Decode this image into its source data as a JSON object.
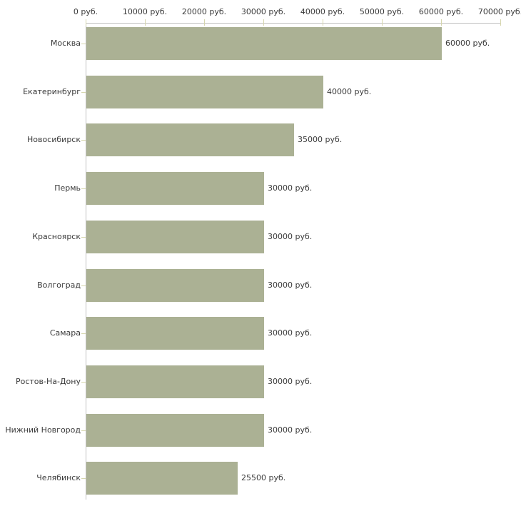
{
  "chart_data": {
    "type": "bar",
    "orientation": "horizontal",
    "title": "",
    "xlabel": "",
    "ylabel": "",
    "categories": [
      "Москва",
      "Екатеринбург",
      "Новосибирск",
      "Пермь",
      "Красноярск",
      "Волгоград",
      "Самара",
      "Ростов-На-Дону",
      "Нижний Новгород",
      "Челябинск"
    ],
    "values": [
      60000,
      40000,
      35000,
      30000,
      30000,
      30000,
      30000,
      30000,
      30000,
      25500
    ],
    "value_labels": [
      "60000 руб.",
      "40000 руб.",
      "35000 руб.",
      "30000 руб.",
      "30000 руб.",
      "30000 руб.",
      "30000 руб.",
      "30000 руб.",
      "30000 руб.",
      "25500 руб."
    ],
    "x_ticks": [
      0,
      10000,
      20000,
      30000,
      40000,
      50000,
      60000,
      70000
    ],
    "x_tick_labels": [
      "0 руб.",
      "10000 руб.",
      "20000 руб.",
      "30000 руб.",
      "40000 руб.",
      "50000 руб.",
      "60000 руб.",
      "70000 руб."
    ],
    "xlim": [
      0,
      70000
    ],
    "grid": false,
    "legend": "none",
    "colors": {
      "bar_fill": "#abb194",
      "axis_line": "#c0c0c0",
      "tick_mark": "#d6d6ad",
      "text": "#3a3a3a",
      "background": "#ffffff"
    }
  }
}
